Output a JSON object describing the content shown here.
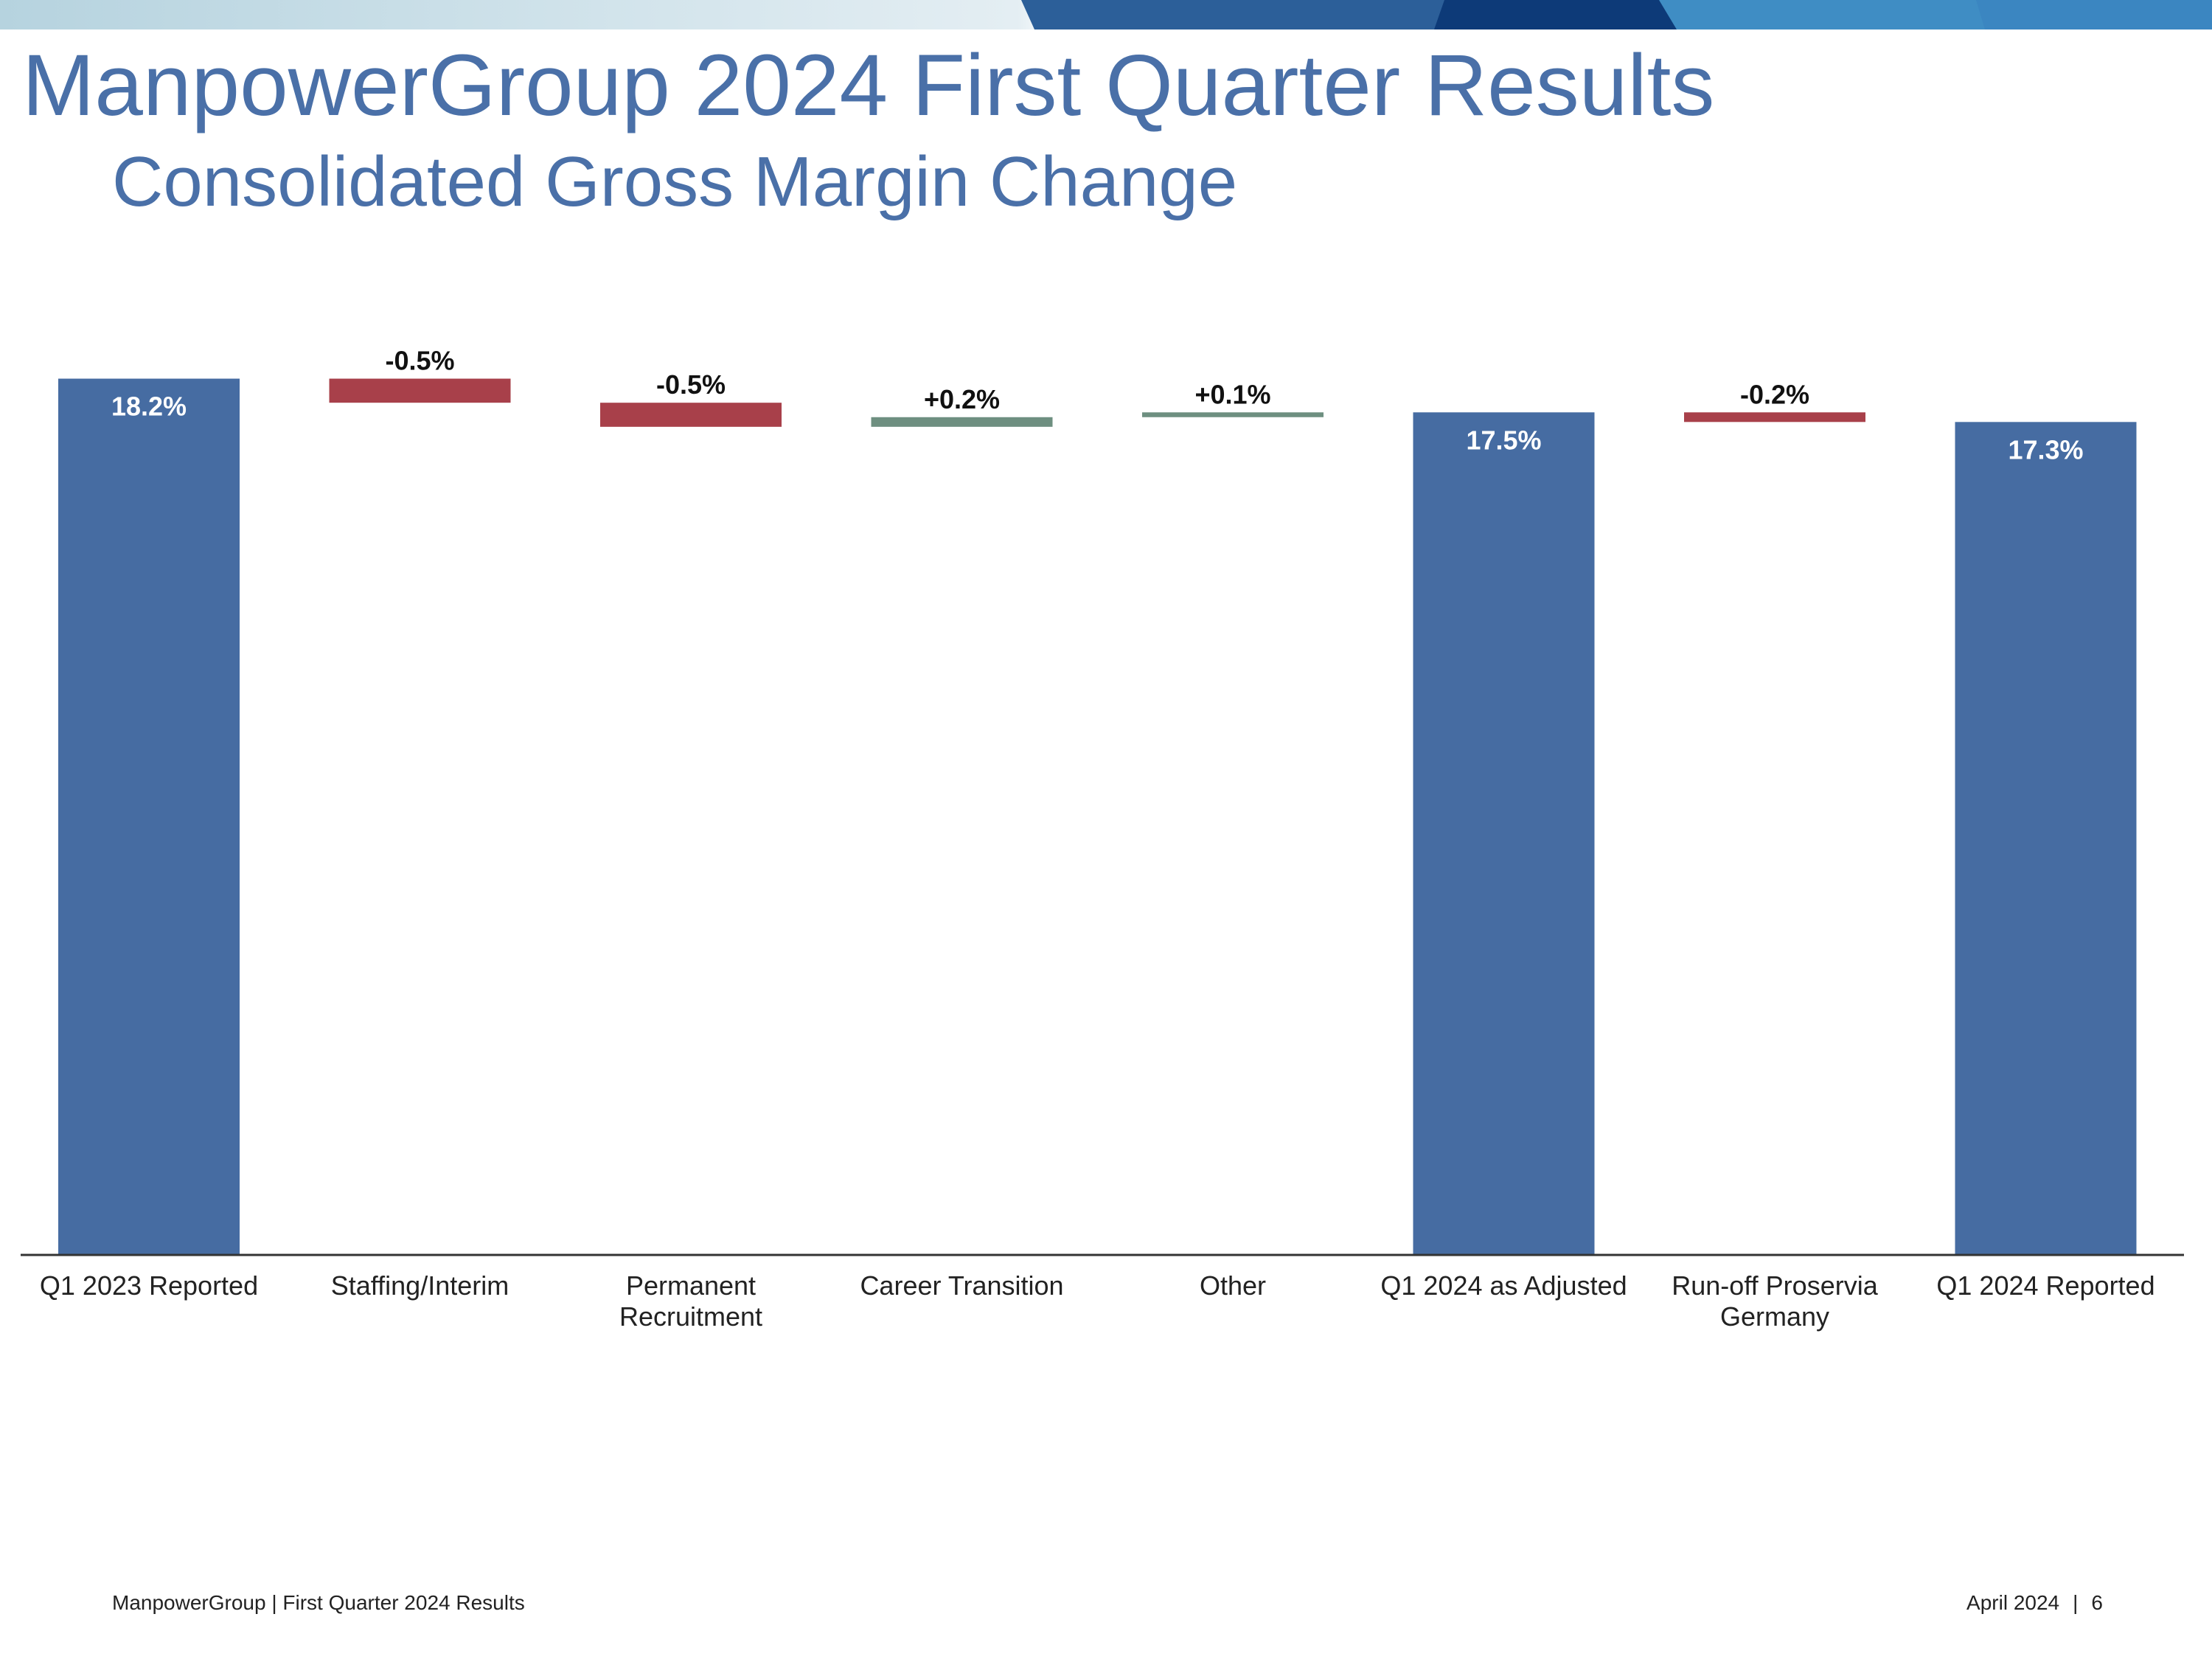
{
  "slide": {
    "title": "ManpowerGroup 2024 First Quarter Results",
    "subtitle": "Consolidated Gross Margin Change"
  },
  "footer": {
    "left": "ManpowerGroup  |  First Quarter 2024 Results",
    "date": "April 2024",
    "separator": "|",
    "page": "6"
  },
  "colors": {
    "total": "#466ca2",
    "decrease": "#a8404a",
    "increase": "#6e8f80",
    "title": "#4a70a8"
  },
  "chart_data": {
    "type": "bar",
    "subtype": "waterfall",
    "categories": [
      [
        "Q1 2023 Reported"
      ],
      [
        "Staffing/Interim"
      ],
      [
        "Permanent",
        "Recruitment"
      ],
      [
        "Career Transition"
      ],
      [
        "Other"
      ],
      [
        "Q1 2024 as Adjusted"
      ],
      [
        "Run-off Proservia",
        "Germany"
      ],
      [
        "Q1 2024 Reported"
      ]
    ],
    "bars": [
      {
        "kind": "total",
        "start": 0,
        "end": 18.2,
        "label": "18.2%"
      },
      {
        "kind": "decrease",
        "start": 18.2,
        "end": 17.7,
        "label": "-0.5%"
      },
      {
        "kind": "decrease",
        "start": 17.7,
        "end": 17.2,
        "label": "-0.5%"
      },
      {
        "kind": "increase",
        "start": 17.2,
        "end": 17.4,
        "label": "+0.2%"
      },
      {
        "kind": "increase",
        "start": 17.4,
        "end": 17.5,
        "label": "+0.1%"
      },
      {
        "kind": "total",
        "start": 0,
        "end": 17.5,
        "label": "17.5%"
      },
      {
        "kind": "decrease",
        "start": 17.5,
        "end": 17.3,
        "label": "-0.2%"
      },
      {
        "kind": "total",
        "start": 0,
        "end": 17.3,
        "label": "17.3%"
      }
    ],
    "xlabel": "",
    "ylabel": "",
    "grid": false,
    "legend": "none"
  }
}
